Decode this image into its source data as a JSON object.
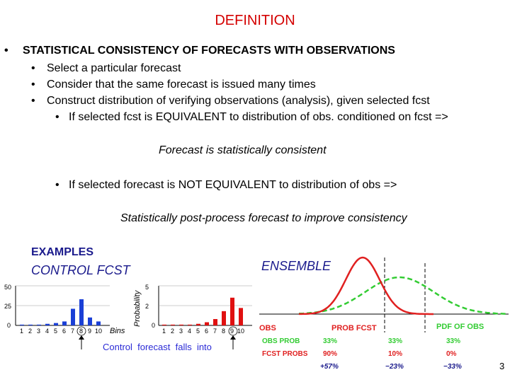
{
  "title": "DEFINITION",
  "main_bullet": "STATISTICAL CONSISTENCY OF FORECASTS WITH OBSERVATIONS",
  "sub_bullets": [
    "Select a particular forecast",
    "Consider that the same forecast is issued many times",
    "Construct distribution of verifying observations (analysis), given selected fcst"
  ],
  "cond1": "If selected fcst is EQUIVALENT to distribution of obs. conditioned on fcst =>",
  "result1": "Forecast is statistically consistent",
  "cond2": "If selected forecast is NOT EQUIVALENT to distribution of obs =>",
  "result2": "Statistically post-process forecast to improve consistency",
  "examples_label": "EXAMPLES",
  "control_label": "CONTROL FCST",
  "ensemble_label": "ENSEMBLE",
  "page_number": "3",
  "left_figure": {
    "y_ticks": [
      "50",
      "25",
      "0"
    ],
    "x_ticks": [
      "1",
      "2",
      "3",
      "4",
      "5",
      "6",
      "7",
      "8",
      "9",
      "10"
    ],
    "bins_label": "Bins",
    "probability_label": "Probability",
    "caption": "Control  forecast  falls  into",
    "highlight_bin": "8",
    "colors": {
      "blue": "#1a3fd6",
      "red": "#e01010",
      "caption": "#2b2bd6"
    }
  },
  "chart_data": [
    {
      "type": "bar",
      "series": [
        {
          "values": [
            1,
            1,
            1,
            2,
            3,
            5,
            21,
            33,
            10,
            5
          ]
        }
      ],
      "categories": [
        "1",
        "2",
        "3",
        "4",
        "5",
        "6",
        "7",
        "8",
        "9",
        "10"
      ],
      "ylim": [
        0,
        50
      ]
    },
    {
      "type": "bar",
      "series": [
        {
          "values": [
            1,
            1,
            1,
            1,
            2,
            4,
            8,
            18,
            35,
            22
          ]
        }
      ],
      "categories": [
        "1",
        "2",
        "3",
        "4",
        "5",
        "6",
        "7",
        "8",
        "9",
        "10"
      ],
      "ylim": [
        0,
        50
      ]
    }
  ],
  "right_figure": {
    "obs_label": "OBS",
    "prob_fcst_label": "PROB FCST",
    "pdf_obs_label": "PDF OF OBS",
    "rows": [
      {
        "label": "OBS PROB",
        "values": [
          "33%",
          "33%",
          "33%"
        ]
      },
      {
        "label": "FCST PROBS",
        "values": [
          "90%",
          "10%",
          "0%"
        ]
      },
      {
        "label": "",
        "values": [
          "+57%",
          "−23%",
          "−33%"
        ]
      }
    ],
    "colors": {
      "fcst": "#e02020",
      "obs": "#33cc33",
      "text": "#1a1a8c"
    }
  }
}
